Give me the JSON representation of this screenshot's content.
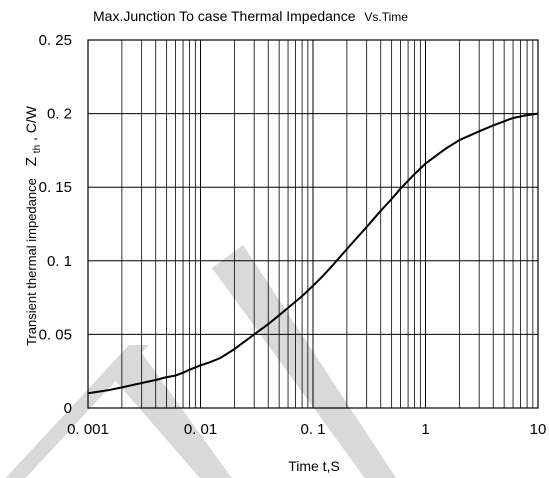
{
  "chart_data": {
    "type": "line",
    "title": "Max.Junction To case Thermal Impedance",
    "title_suffix": "Vs.Time",
    "xlabel": "Time t,S",
    "ylabel_prefix": "Transient thermal impedance",
    "ylabel_symbol": "Z",
    "ylabel_subscript": "th",
    "ylabel_unit": ", C/W",
    "x_scale": "log",
    "xlim": [
      0.001,
      10
    ],
    "ylim": [
      0,
      0.25
    ],
    "x_ticks": [
      0.001,
      0.01,
      0.1,
      1,
      10
    ],
    "x_tick_labels": [
      "0. 001",
      "0. 01",
      "0. 1",
      "1",
      "10"
    ],
    "y_ticks": [
      0,
      0.05,
      0.1,
      0.15,
      0.2,
      0.25
    ],
    "y_tick_labels": [
      "0",
      "0. 05",
      "0. 1",
      "0. 15",
      "0. 2",
      "0. 25"
    ],
    "grid": true,
    "line_color": "#000000",
    "watermark_color": "#d9d9d9",
    "series": [
      {
        "x": [
          0.001,
          0.0015,
          0.002,
          0.003,
          0.004,
          0.005,
          0.006,
          0.007,
          0.008,
          0.01,
          0.012,
          0.015,
          0.02,
          0.03,
          0.04,
          0.05,
          0.06,
          0.08,
          0.1,
          0.12,
          0.15,
          0.2,
          0.3,
          0.4,
          0.5,
          0.6,
          0.8,
          1,
          1.5,
          2,
          3,
          4,
          6,
          8,
          10
        ],
        "y": [
          0.01,
          0.012,
          0.014,
          0.017,
          0.019,
          0.021,
          0.022,
          0.024,
          0.026,
          0.029,
          0.031,
          0.034,
          0.04,
          0.05,
          0.057,
          0.063,
          0.068,
          0.076,
          0.083,
          0.089,
          0.097,
          0.108,
          0.123,
          0.134,
          0.142,
          0.149,
          0.159,
          0.166,
          0.176,
          0.182,
          0.188,
          0.192,
          0.197,
          0.199,
          0.2
        ]
      }
    ]
  }
}
